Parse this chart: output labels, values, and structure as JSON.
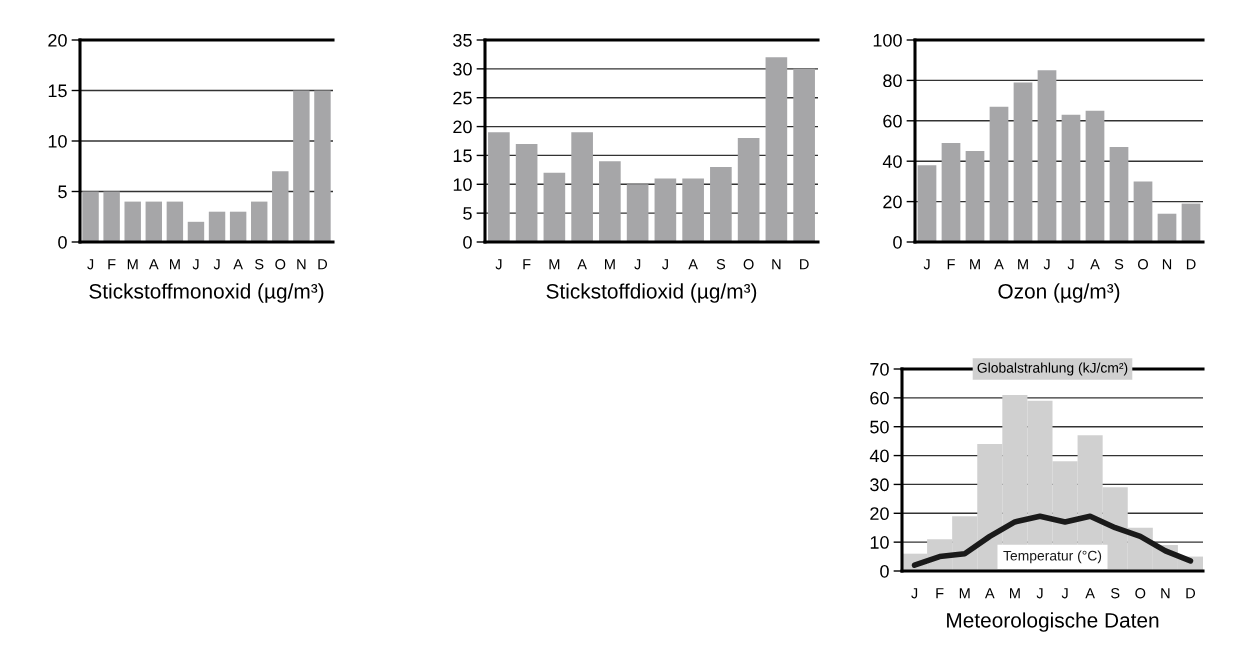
{
  "chart_data": [
    {
      "type": "bar",
      "xlabel": "Stickstoffmonoxid (µg/m³)",
      "categories": [
        "J",
        "F",
        "M",
        "A",
        "M",
        "J",
        "J",
        "A",
        "S",
        "O",
        "N",
        "D"
      ],
      "values": [
        5,
        5,
        4,
        4,
        4,
        2,
        3,
        3,
        4,
        7,
        15,
        15
      ],
      "color": "#a6a6a8",
      "ylim": [
        0,
        20
      ],
      "yticks": [
        0,
        5,
        10,
        15,
        20
      ],
      "grid": "y"
    },
    {
      "type": "bar",
      "xlabel": "Stickstoffdioxid (µg/m³)",
      "categories": [
        "J",
        "F",
        "M",
        "A",
        "M",
        "J",
        "J",
        "A",
        "S",
        "O",
        "N",
        "D"
      ],
      "values": [
        19,
        17,
        12,
        19,
        14,
        10,
        11,
        11,
        13,
        18,
        32,
        30
      ],
      "color": "#a6a6a8",
      "ylim": [
        0,
        35
      ],
      "yticks": [
        0,
        5,
        10,
        15,
        20,
        25,
        30,
        35
      ],
      "grid": "y"
    },
    {
      "type": "bar",
      "xlabel": "Ozon (µg/m³)",
      "categories": [
        "J",
        "F",
        "M",
        "A",
        "M",
        "J",
        "J",
        "A",
        "S",
        "O",
        "N",
        "D"
      ],
      "values": [
        38,
        49,
        45,
        67,
        79,
        85,
        63,
        65,
        47,
        30,
        14,
        19
      ],
      "color": "#a6a6a8",
      "ylim": [
        0,
        100
      ],
      "yticks": [
        0,
        20,
        40,
        60,
        80,
        100
      ],
      "grid": "y"
    },
    {
      "type": "bar",
      "xlabel": "Meteorologische Daten",
      "categories": [
        "J",
        "F",
        "M",
        "A",
        "M",
        "J",
        "J",
        "A",
        "S",
        "O",
        "N",
        "D"
      ],
      "ylim": [
        0,
        70
      ],
      "yticks": [
        0,
        10,
        20,
        30,
        40,
        50,
        60,
        70
      ],
      "grid": "y",
      "series": [
        {
          "name": "Globalstrahlung (kJ/cm²)",
          "type": "bar",
          "color": "#d0d0d0",
          "values": [
            6,
            11,
            19,
            44,
            61,
            59,
            38,
            47,
            29,
            15,
            9,
            5
          ]
        },
        {
          "name": "Temperatur (°C)",
          "type": "line",
          "color": "#1a1a1a",
          "values": [
            2,
            5,
            6,
            12,
            17,
            19,
            17,
            19,
            15,
            12,
            7,
            3.5
          ]
        }
      ]
    }
  ]
}
